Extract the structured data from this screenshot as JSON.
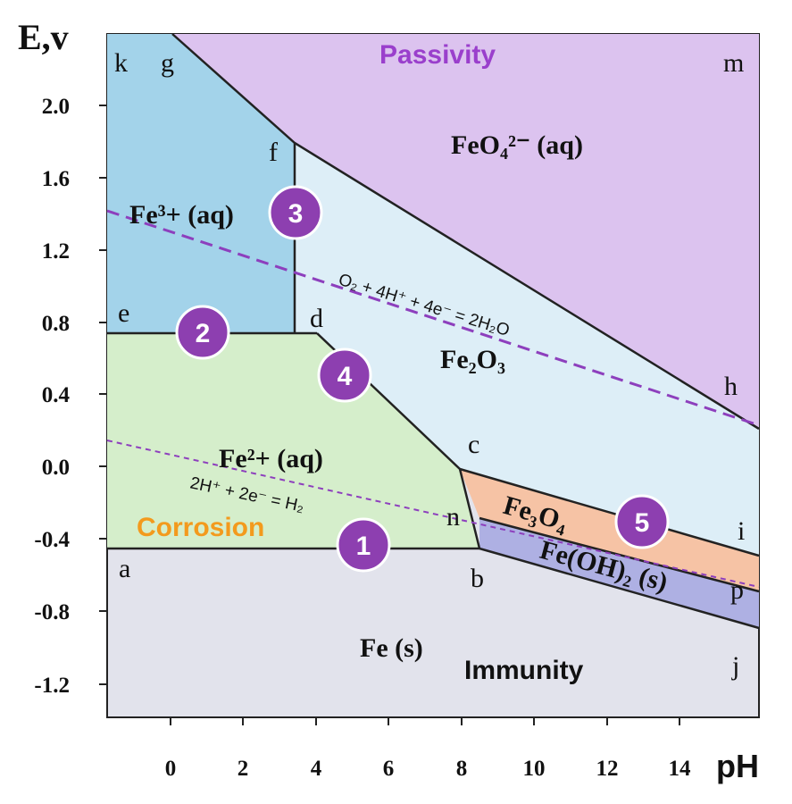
{
  "chart_data": {
    "type": "diagram",
    "y_axis_title": "E,v",
    "x_axis_title": "pH",
    "x_ticks": [
      "0",
      "2",
      "4",
      "6",
      "8",
      "10",
      "12",
      "14"
    ],
    "y_ticks": [
      "2.0",
      "1.6",
      "1.2",
      "0.8",
      "0.4",
      "0.0",
      "-0.4",
      "-0.8",
      "-1.2"
    ],
    "xlim": [
      -1.8,
      16
    ],
    "ylim": [
      -1.4,
      2.4
    ],
    "colors": {
      "passivity": "#dcc3ef",
      "fe3": "#a3d3ea",
      "fe2": "#d5eecb",
      "fe2o3": "#ddeef7",
      "fe3o4": "#f6c3a5",
      "feoh2": "#aeb0e3",
      "fe_solid": "#e2e3ec",
      "eq_line": "#8d3fbd",
      "circle": "#8d3fb0",
      "passivity_text": "#9a3fcc",
      "corrosion_text": "#f39a1d",
      "immunity_text": "#111111"
    },
    "point_labels": [
      "k",
      "g",
      "m",
      "f",
      "e",
      "d",
      "h",
      "c",
      "n",
      "i",
      "a",
      "b",
      "p",
      "j"
    ],
    "species": {
      "feo4": "FeO₄²⁻ (aq)",
      "fe3": "Fe³+ (aq)",
      "fe2": "Fe²+ (aq)",
      "fe2o3": "Fe₂O₃",
      "fe3o4": "Fe₃O₄",
      "feoh2": "Fe(OH)₂ (s)",
      "fe": "Fe (s)"
    },
    "region_labels": {
      "passivity": "Passivity",
      "corrosion": "Corrosion",
      "immunity": "Immunity"
    },
    "equations": {
      "oxygen": "O₂ + 4H⁺ + 4e⁻ = 2H₂O",
      "hydrogen": "2H⁺ + 2e⁻ = H₂"
    },
    "numbered_lines": [
      "1",
      "2",
      "3",
      "4",
      "5"
    ]
  }
}
